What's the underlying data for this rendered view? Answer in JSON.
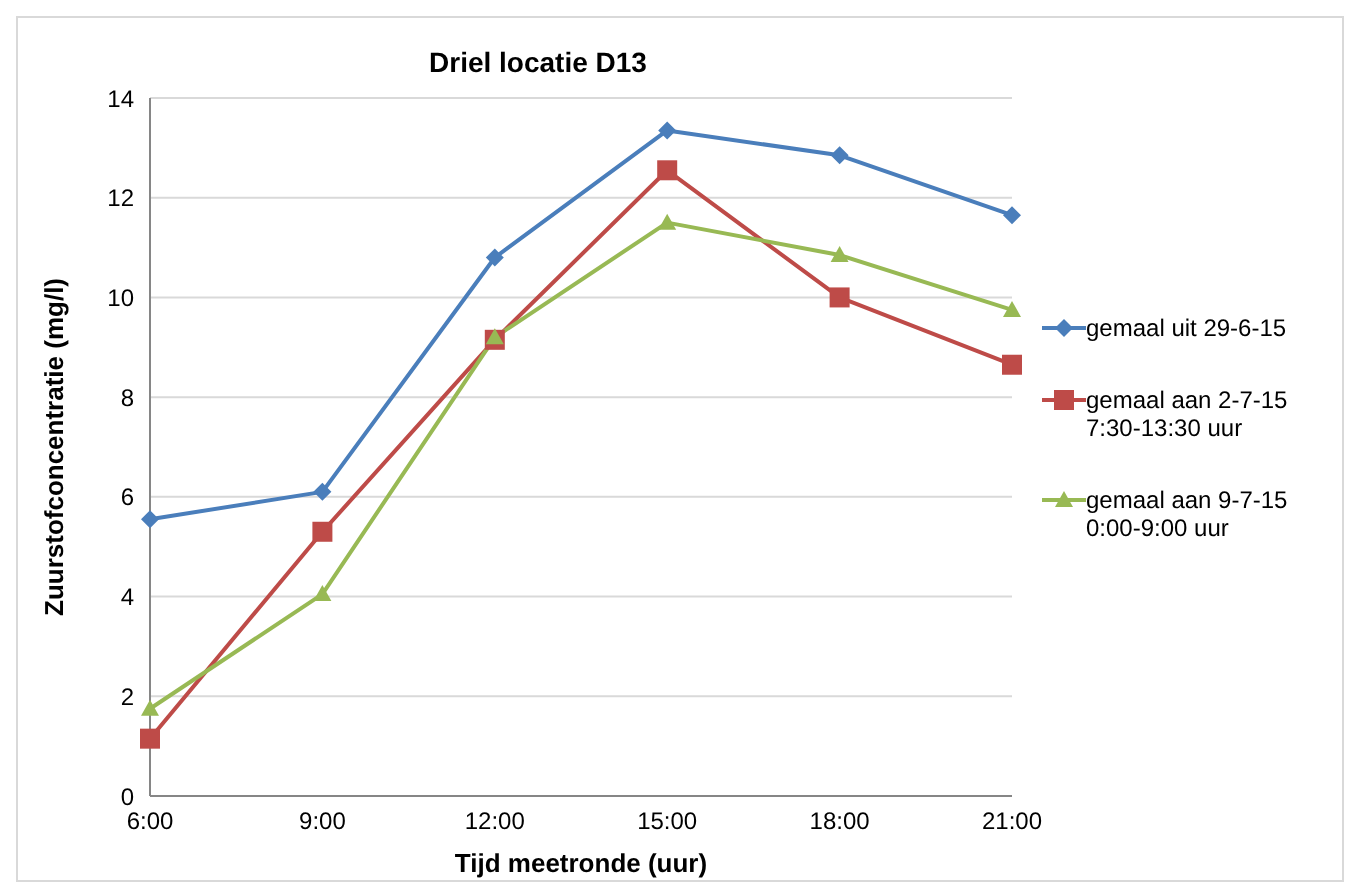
{
  "chart_data": {
    "type": "line",
    "title": "Driel locatie D13",
    "xlabel": "Tijd meetronde (uur)",
    "ylabel": "Zuurstofconcentratie (mg/l)",
    "categories": [
      "6:00",
      "9:00",
      "12:00",
      "15:00",
      "18:00",
      "21:00"
    ],
    "series": [
      {
        "name": "gemaal uit 29-6-15",
        "color": "#4a7ebb",
        "marker": "diamond",
        "values": [
          5.55,
          6.1,
          10.8,
          13.35,
          12.85,
          11.65
        ]
      },
      {
        "name": "gemaal aan 2-7-15 7:30-13:30 uur",
        "color": "#be4b48",
        "marker": "square",
        "values": [
          1.15,
          5.3,
          9.15,
          12.55,
          10.0,
          8.65
        ]
      },
      {
        "name": "gemaal aan 9-7-15 0:00-9:00 uur",
        "color": "#98b954",
        "marker": "triangle",
        "values": [
          1.75,
          4.05,
          9.2,
          11.5,
          10.85,
          9.75
        ]
      }
    ],
    "ylim": [
      0,
      14
    ],
    "yticks": [
      0,
      2,
      4,
      6,
      8,
      10,
      12,
      14
    ],
    "grid": "y",
    "legend": "right",
    "line_style": "solid"
  }
}
